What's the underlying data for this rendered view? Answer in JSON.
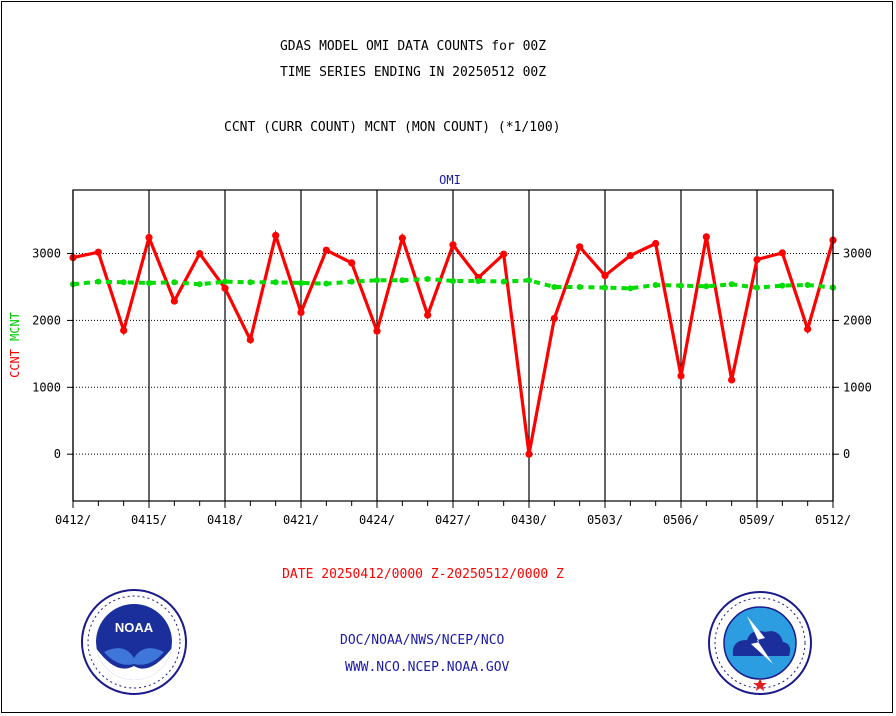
{
  "titles": {
    "line1": "GDAS MODEL OMI DATA COUNTS for 00Z",
    "line2": "TIME SERIES ENDING IN 20250512 00Z",
    "line3": "CCNT (CURR COUNT) MCNT (MON COUNT) (*1/100)"
  },
  "chart_data": {
    "type": "line",
    "title": "OMI",
    "ylabel_parts": [
      {
        "text": "CCNT",
        "color": "#ff0000"
      },
      {
        "text": "MCNT",
        "color": "#00cc00"
      }
    ],
    "xlabel": "DATE 20250412/0000 Z-20250512/0000 Z",
    "ylim": [
      -700,
      3950
    ],
    "yticks": [
      0,
      1000,
      2000,
      3000
    ],
    "ytick_labels": [
      "0",
      "1000",
      "2000",
      "3000"
    ],
    "xticks": [
      "0412/",
      "0415/",
      "0418/",
      "0421/",
      "0424/",
      "0427/",
      "0430/",
      "0503/",
      "0506/",
      "0509/",
      "0512/"
    ],
    "x": [
      "0412",
      "0413",
      "0414",
      "0415",
      "0416",
      "0417",
      "0418",
      "0419",
      "0420",
      "0421",
      "0422",
      "0423",
      "0424",
      "0425",
      "0426",
      "0427",
      "0428",
      "0429",
      "0430",
      "0501",
      "0502",
      "0503",
      "0504",
      "0505",
      "0506",
      "0507",
      "0508",
      "0509",
      "0510",
      "0511",
      "0512"
    ],
    "grid": true,
    "series": [
      {
        "name": "CCNT",
        "color": "#ff0000",
        "style": "solid",
        "values": [
          2940,
          3020,
          1850,
          3240,
          2290,
          3000,
          2480,
          1710,
          3270,
          2120,
          3050,
          2860,
          1840,
          3230,
          2080,
          3130,
          2640,
          2990,
          0,
          2030,
          3100,
          2670,
          2970,
          3150,
          1170,
          3250,
          1110,
          2910,
          3010,
          1870,
          3200
        ]
      },
      {
        "name": "MCNT",
        "color": "#00dd00",
        "style": "dashed",
        "values": [
          2540,
          2580,
          2570,
          2560,
          2570,
          2540,
          2580,
          2570,
          2570,
          2560,
          2550,
          2580,
          2600,
          2600,
          2620,
          2590,
          2590,
          2580,
          2600,
          2500,
          2500,
          2490,
          2480,
          2530,
          2520,
          2510,
          2540,
          2490,
          2520,
          2530,
          2490
        ]
      }
    ]
  },
  "footer": {
    "link1": "DOC/NOAA/NWS/NCEP/NCO",
    "link2": "WWW.NCO.NCEP.NOAA.GOV"
  },
  "colors": {
    "date_label": "#ff0000",
    "footer_link": "#1a1aa8",
    "omi_label": "#1a1aa8"
  }
}
